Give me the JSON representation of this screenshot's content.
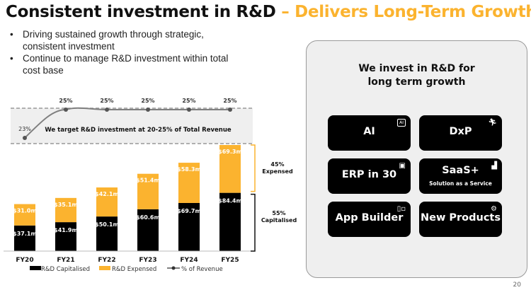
{
  "header": {
    "title_main": "Consistent investment in R&D",
    "title_accent": "– Delivers Long-Term Growth"
  },
  "bullets": [
    "Driving sustained growth through strategic, consistent investment",
    "Continue to manage R&D investment within total cost base"
  ],
  "colors": {
    "accent": "#fbb32f",
    "capitalised": "#000000",
    "expensed": "#fbb32f",
    "line": "#7f7f7f",
    "band": "#efefef"
  },
  "chart_data": {
    "type": "bar",
    "stacked": true,
    "categories": [
      "FY20",
      "FY21",
      "FY22",
      "FY23",
      "FY24",
      "FY25"
    ],
    "series": [
      {
        "name": "R&D Capitalised",
        "values": [
          37.1,
          41.9,
          50.1,
          60.6,
          69.7,
          84.4
        ],
        "labels": [
          "$37.1m",
          "$41.9m",
          "$50.1m",
          "$60.6m",
          "$69.7m",
          "$84.4m"
        ]
      },
      {
        "name": "R&D Expensed",
        "values": [
          31.0,
          35.1,
          42.1,
          51.4,
          58.3,
          69.3
        ],
        "labels": [
          "$31.0m",
          "$35.1m",
          "$42.1m",
          "$51.4m",
          "$58.3m",
          "$69.3m"
        ]
      }
    ],
    "line": {
      "name": "% of Revenue",
      "values": [
        23,
        25,
        25,
        25,
        25,
        25
      ],
      "labels": [
        "23%",
        "25%",
        "25%",
        "25%",
        "25%",
        "25%"
      ]
    },
    "target_note": "We target R&D investment at 20-25% of Total Revenue",
    "bracket_expensed": {
      "pct": "45%",
      "label": "Expensed"
    },
    "bracket_capitalised": {
      "pct": "55%",
      "label": "Capitalised"
    },
    "legend": [
      "R&D Capitalised",
      "R&D Expensed",
      "% of Revenue"
    ],
    "legend_placement": "bottom"
  },
  "panel": {
    "title": "We invest in R&D for long term growth",
    "tiles": [
      {
        "label": "AI",
        "sub": "",
        "icon": "ai-icon"
      },
      {
        "label": "DxP",
        "sub": "",
        "icon": "person-running-icon"
      },
      {
        "label": "ERP in 30",
        "sub": "",
        "icon": "calendar-30-icon"
      },
      {
        "label": "SaaS+",
        "sub": "Solution as a Service",
        "icon": "growth-chart-icon"
      },
      {
        "label": "App Builder",
        "sub": "",
        "icon": "layout-blocks-icon"
      },
      {
        "label": "New Products",
        "sub": "",
        "icon": "badge-alert-icon"
      }
    ]
  },
  "page_number": "20"
}
